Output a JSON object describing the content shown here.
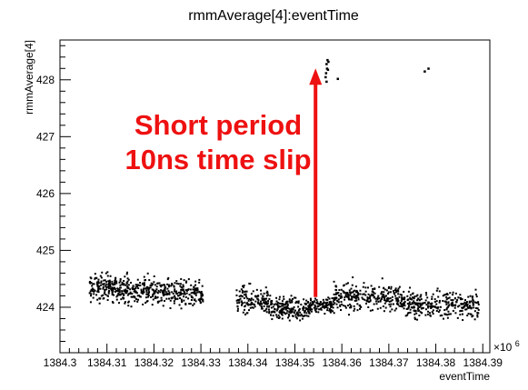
{
  "chart_data": {
    "type": "scatter",
    "title": "rmmAverage[4]:eventTime",
    "xlabel": "eventTime",
    "ylabel": "rmmAverage[4]",
    "x_exponent_label": "×10",
    "x_exponent_power": "6",
    "xlim": [
      1384.3,
      1384.3915
    ],
    "ylim": [
      423.2,
      428.7
    ],
    "grid": false,
    "legend": "none",
    "x_tick_labels": [
      "1384.3",
      "1384.31",
      "1384.32",
      "1384.33",
      "1384.34",
      "1384.35",
      "1384.36",
      "1384.37",
      "1384.38",
      "1384.39"
    ],
    "x_tick_values": [
      1384.3,
      1384.31,
      1384.32,
      1384.33,
      1384.34,
      1384.35,
      1384.36,
      1384.37,
      1384.38,
      1384.39
    ],
    "y_tick_labels": [
      "424",
      "425",
      "426",
      "427",
      "428"
    ],
    "y_tick_values": [
      424,
      425,
      426,
      427,
      428
    ],
    "marker_color": "#000000",
    "segments": [
      {
        "x_start": 1384.3063,
        "x_end": 1384.3145,
        "y_center": 424.34,
        "spread": 0.17,
        "count": 200
      },
      {
        "x_start": 1384.3145,
        "x_end": 1384.3265,
        "y_center": 424.28,
        "spread": 0.17,
        "count": 240
      },
      {
        "x_start": 1384.3265,
        "x_end": 1384.3305,
        "y_center": 424.22,
        "spread": 0.16,
        "count": 80
      },
      {
        "x_start": 1384.3375,
        "x_end": 1384.3445,
        "y_center": 424.12,
        "spread": 0.17,
        "count": 140
      },
      {
        "x_start": 1384.3445,
        "x_end": 1384.3535,
        "y_center": 423.98,
        "spread": 0.13,
        "count": 200
      },
      {
        "x_start": 1384.3535,
        "x_end": 1384.3582,
        "y_center": 424.04,
        "spread": 0.11,
        "count": 90
      },
      {
        "x_start": 1384.3582,
        "x_end": 1384.3725,
        "y_center": 424.18,
        "spread": 0.17,
        "count": 270
      },
      {
        "x_start": 1384.3725,
        "x_end": 1384.3845,
        "y_center": 424.06,
        "spread": 0.16,
        "count": 230
      },
      {
        "x_start": 1384.3845,
        "x_end": 1384.3892,
        "y_center": 424.0,
        "spread": 0.18,
        "count": 90
      }
    ],
    "outlier_points": [
      {
        "x": 1384.3567,
        "y": 428.28
      },
      {
        "x": 1384.3569,
        "y": 428.35
      },
      {
        "x": 1384.3571,
        "y": 428.32
      },
      {
        "x": 1384.3568,
        "y": 428.2
      },
      {
        "x": 1384.3566,
        "y": 428.12
      },
      {
        "x": 1384.357,
        "y": 428.18
      },
      {
        "x": 1384.3565,
        "y": 428.05
      },
      {
        "x": 1384.3567,
        "y": 427.97
      },
      {
        "x": 1384.3591,
        "y": 428.02
      },
      {
        "x": 1384.3776,
        "y": 428.15
      },
      {
        "x": 1384.3784,
        "y": 428.2
      }
    ],
    "annotation": {
      "lines": [
        "Short period",
        "10ns time slip"
      ],
      "color": "#ee1111",
      "arrow_x": 1384.3544,
      "arrow_y_from": 424.18,
      "arrow_y_to": 428.2
    }
  }
}
